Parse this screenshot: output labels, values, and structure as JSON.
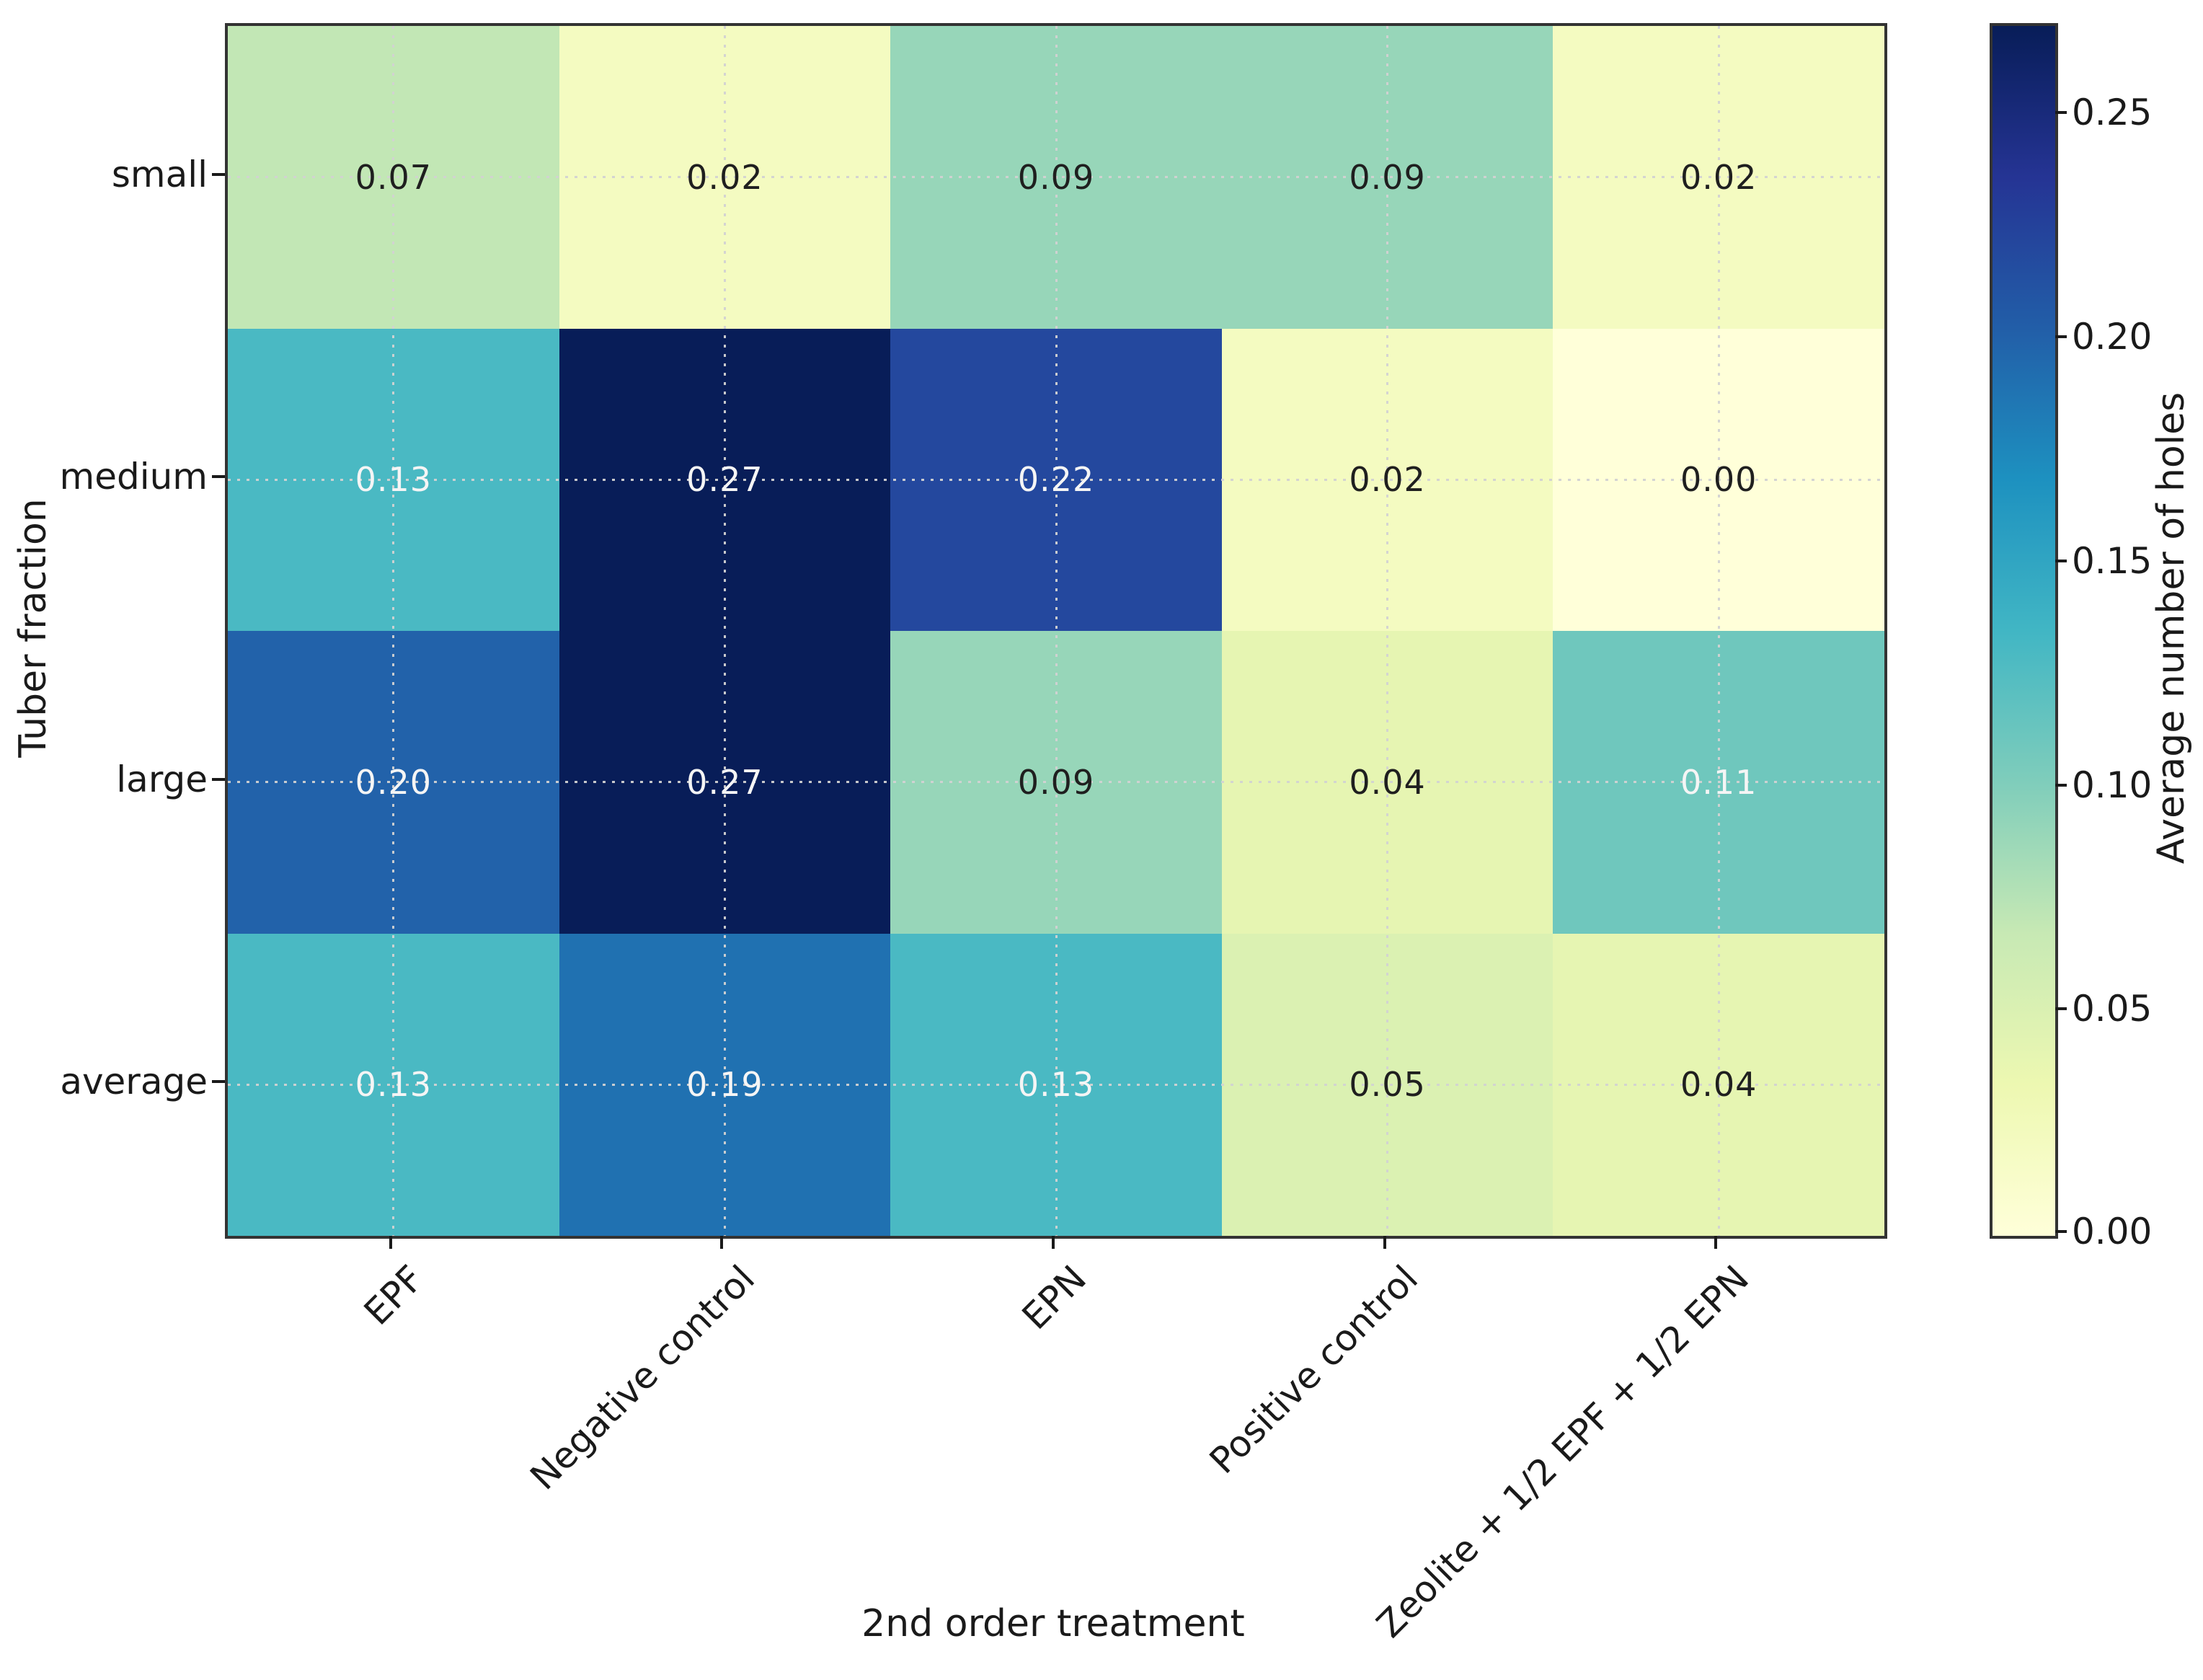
{
  "chart_data": {
    "type": "heatmap",
    "xlabel": "2nd order treatment",
    "ylabel": "Tuber fraction",
    "x_categories": [
      "EPF",
      "Negative control",
      "EPN",
      "Positive control",
      "Zeolite + 1/2 EPF + 1/2 EPN"
    ],
    "y_categories": [
      "small",
      "medium",
      "large",
      "average"
    ],
    "values": [
      [
        0.07,
        0.02,
        0.09,
        0.09,
        0.02
      ],
      [
        0.13,
        0.27,
        0.22,
        0.02,
        0.0
      ],
      [
        0.2,
        0.27,
        0.09,
        0.04,
        0.11
      ],
      [
        0.13,
        0.19,
        0.13,
        0.05,
        0.04
      ]
    ],
    "value_labels": [
      [
        "0.07",
        "0.02",
        "0.09",
        "0.09",
        "0.02"
      ],
      [
        "0.13",
        "0.27",
        "0.22",
        "0.02",
        "0.00"
      ],
      [
        "0.20",
        "0.27",
        "0.09",
        "0.04",
        "0.11"
      ],
      [
        "0.13",
        "0.19",
        "0.13",
        "0.05",
        "0.04"
      ]
    ],
    "vmin": 0.0,
    "vmax": 0.27,
    "grid": "dotted, at row and column centers",
    "colormap": "YlGnBu",
    "colormap_stops": [
      "#ffffd9",
      "#edf8b1",
      "#c7e9b4",
      "#7fcdbb",
      "#41b6c4",
      "#1d91c0",
      "#225ea8",
      "#253494",
      "#081d58"
    ],
    "colorbar_label": "Average number of holes",
    "colorbar_ticks": [
      "0.25",
      "0.20",
      "0.15",
      "0.10",
      "0.05",
      "0.00"
    ],
    "annotation_text_colors": {
      "light_cells": "#1f1f1f",
      "dark_cells": "#f5f5f5"
    },
    "legend_position": "right colorbar"
  }
}
